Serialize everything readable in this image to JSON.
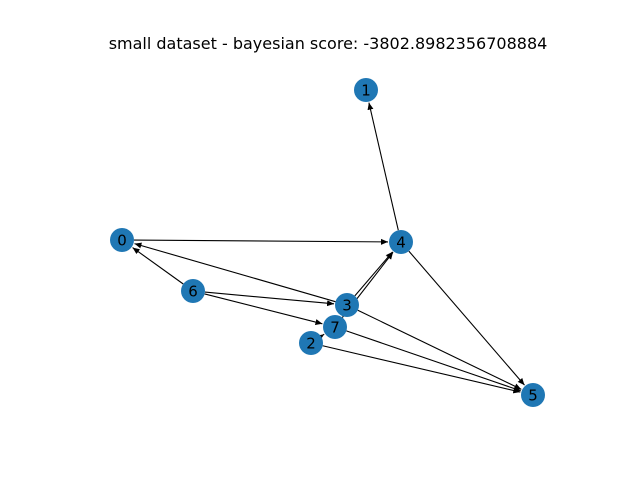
{
  "title": "small dataset - bayesian score: -3802.8982356708884",
  "colors": {
    "node": "#1f77b4",
    "edge": "#000000",
    "background": "#ffffff"
  },
  "graph": {
    "directed": true,
    "nodes": [
      "0",
      "1",
      "2",
      "3",
      "4",
      "5",
      "6",
      "7"
    ],
    "edges": [
      [
        "0",
        "4"
      ],
      [
        "4",
        "1"
      ],
      [
        "4",
        "5"
      ],
      [
        "3",
        "4"
      ],
      [
        "3",
        "0"
      ],
      [
        "3",
        "5"
      ],
      [
        "6",
        "0"
      ],
      [
        "6",
        "3"
      ],
      [
        "6",
        "7"
      ],
      [
        "7",
        "4"
      ],
      [
        "7",
        "5"
      ],
      [
        "2",
        "7"
      ],
      [
        "2",
        "5"
      ]
    ]
  }
}
